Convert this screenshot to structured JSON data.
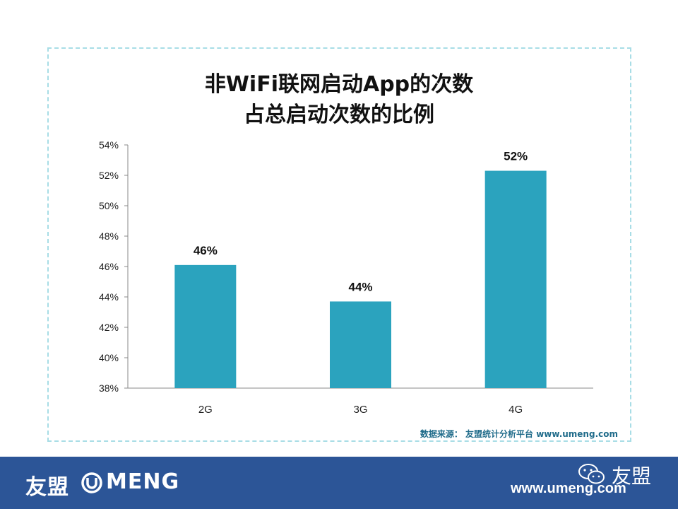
{
  "title_line1": "非WiFi联网启动App的次数",
  "title_line2": "占总启动次数的比例",
  "source": "数据来源： 友盟统计分析平台 www.umeng.com",
  "footer": {
    "logo_cn": "友盟",
    "logo_en": "MENG",
    "wechat_name": "友盟",
    "url": "www.umeng.com"
  },
  "colors": {
    "bar": "#2ba3be",
    "footer": "#2c5597",
    "frame": "#a8dde6"
  },
  "chart_data": {
    "type": "bar",
    "title": "非WiFi联网启动App的次数 占总启动次数的比例",
    "categories": [
      "2G",
      "3G",
      "4G"
    ],
    "values": [
      46.1,
      43.7,
      52.3
    ],
    "data_labels": [
      "46%",
      "44%",
      "52%"
    ],
    "ylim": [
      38,
      54
    ],
    "yticks": [
      38,
      40,
      42,
      44,
      46,
      48,
      50,
      52,
      54
    ],
    "ytick_labels": [
      "38%",
      "40%",
      "42%",
      "44%",
      "46%",
      "48%",
      "50%",
      "52%",
      "54%"
    ],
    "xlabel": "",
    "ylabel": "",
    "grid": false,
    "legend": "none"
  }
}
